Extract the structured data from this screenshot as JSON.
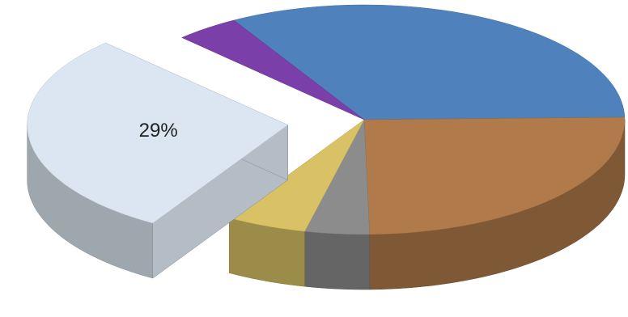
{
  "chart_data": {
    "type": "pie3d",
    "values": [
      33,
      25,
      4,
      5,
      29,
      4
    ],
    "value_labels": [
      null,
      null,
      null,
      null,
      "29%",
      null
    ],
    "colors": [
      "#4f81bd",
      "#b07a4a",
      "#8c8c8c",
      "#d9c266",
      "#dce6f2",
      "#7a3fa8"
    ],
    "exploded": [
      false,
      false,
      false,
      false,
      true,
      false
    ]
  }
}
